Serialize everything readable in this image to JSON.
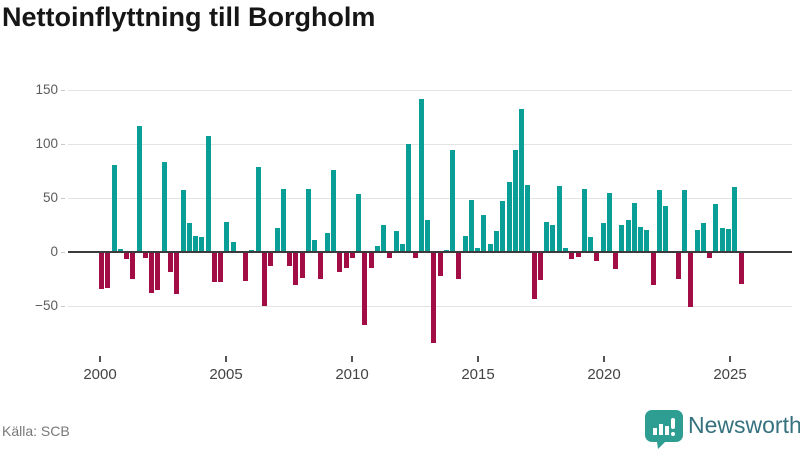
{
  "title": "Nettoinflyttning till Borgholm",
  "source": "Källa: SCB",
  "logo": {
    "text": "Newsworthy",
    "icon": "newsworthy-bubble-chart-icon",
    "icon_color": "#2E9D92",
    "text_color": "#35717F"
  },
  "chart_data": {
    "type": "bar",
    "title": "Nettoinflyttning till Borgholm",
    "frequency": "quarterly",
    "start": "2000Q1",
    "end": "2025Q3",
    "values": [
      -33,
      -32,
      81,
      3,
      -6,
      -24,
      117,
      -5,
      -37,
      -34,
      83,
      -18,
      -38,
      57,
      27,
      15,
      14,
      107,
      -27,
      -27,
      28,
      9,
      0,
      -26,
      2,
      79,
      -49,
      -12,
      22,
      58,
      -12,
      -30,
      -23,
      58,
      11,
      -24,
      18,
      76,
      -18,
      -14,
      -5,
      54,
      -67,
      -14,
      6,
      25,
      -5,
      19,
      7,
      100,
      -5,
      142,
      30,
      -83,
      -21,
      2,
      94,
      -24,
      15,
      48,
      4,
      34,
      7,
      19,
      47,
      65,
      94,
      132,
      62,
      -43,
      -25,
      28,
      25,
      61,
      4,
      -6,
      -4,
      58,
      14,
      -7,
      27,
      55,
      -15,
      25,
      30,
      45,
      23,
      20,
      -30,
      57,
      43,
      0,
      -24,
      57,
      -50,
      20,
      27,
      -5,
      44,
      22,
      21,
      60,
      -29
    ],
    "x_tick_labels": [
      "2000",
      "2005",
      "2010",
      "2015",
      "2020",
      "2025"
    ],
    "y_tick_labels": [
      "150",
      "100",
      "50",
      "0",
      "−50"
    ],
    "y_ticks": [
      150,
      100,
      50,
      0,
      -50
    ],
    "ylim": [
      -90,
      155
    ],
    "grid": "horizontal",
    "legend": "none",
    "positive_color": "#0A9F96",
    "negative_color": "#A30D45",
    "axis_color": "#3b3b3b",
    "gridline_color": "#e3e3e3"
  }
}
